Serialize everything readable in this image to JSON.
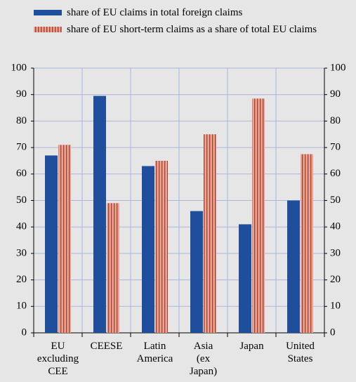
{
  "chart_data": {
    "type": "bar",
    "categories": [
      "EU\nexcluding\nCEE",
      "CEESE",
      "Latin\nAmerica",
      "Asia\n(ex\nJapan)",
      "Japan",
      "United\nStates"
    ],
    "series": [
      {
        "name": "share of EU claims in total foreign claims",
        "color": "#1f4e9c",
        "values": [
          67,
          89.5,
          63,
          46,
          41,
          50
        ]
      },
      {
        "name": "share of EU short-term claims as a share of total EU claims",
        "color": "#e9a493",
        "values": [
          71,
          49,
          65,
          75,
          88.5,
          67.5
        ]
      }
    ],
    "ylim": [
      0,
      100
    ],
    "yticks": [
      0,
      10,
      20,
      30,
      40,
      50,
      60,
      70,
      80,
      90,
      100
    ],
    "y2lim": [
      0,
      100
    ],
    "y2ticks": [
      0,
      10,
      20,
      30,
      40,
      50,
      60,
      70,
      80,
      90,
      100
    ],
    "grid": true
  }
}
